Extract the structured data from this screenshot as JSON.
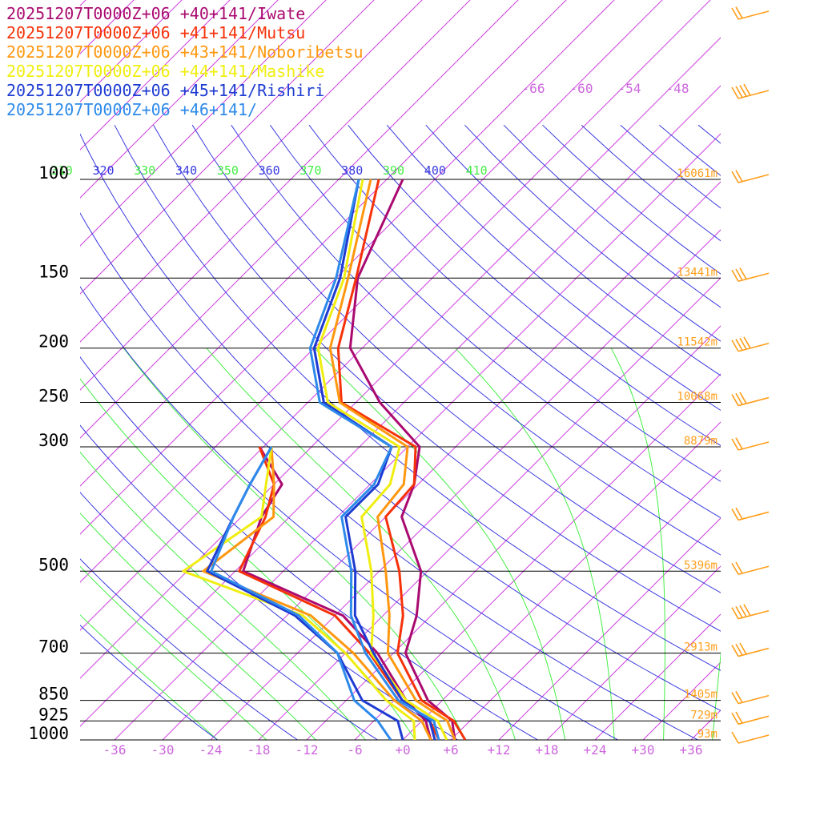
{
  "chart_data": {
    "type": "skew-t log-p sounding",
    "legend": [
      {
        "label": "20251207T0000Z+06 +40+141/Iwate",
        "color": "#aa0a70"
      },
      {
        "label": "20251207T0000Z+06 +41+141/Mutsu",
        "color": "#f5320a"
      },
      {
        "label": "20251207T0000Z+06 +43+141/Noboribetsu",
        "color": "#ff9810"
      },
      {
        "label": "20251207T0000Z+06 +44+141/Mashike",
        "color": "#f0ee10"
      },
      {
        "label": "20251207T0000Z+06 +45+141/Rishiri",
        "color": "#1e3cd2"
      },
      {
        "label": "20251207T0000Z+06 +46+141/",
        "color": "#2e8aea"
      }
    ],
    "pressure_levels": [
      {
        "p": 100,
        "label": "100",
        "height": "16061m"
      },
      {
        "p": 150,
        "label": "150",
        "height": "13441m"
      },
      {
        "p": 200,
        "label": "200",
        "height": "11542m"
      },
      {
        "p": 250,
        "label": "250",
        "height": "10068m"
      },
      {
        "p": 300,
        "label": "300",
        "height": "8879m"
      },
      {
        "p": 500,
        "label": "500",
        "height": "5396m"
      },
      {
        "p": 700,
        "label": "700",
        "height": "2913m"
      },
      {
        "p": 850,
        "label": "850",
        "height": "1405m"
      },
      {
        "p": 925,
        "label": "925",
        "height": "729m"
      },
      {
        "p": 1000,
        "label": "1000",
        "height": "93m"
      }
    ],
    "temperature_ticks": [
      "-36",
      "-30",
      "-24",
      "-18",
      "-12",
      "-6",
      "+0",
      "+6",
      "+12",
      "+18",
      "+24",
      "+30",
      "+36"
    ],
    "upper_temperature_labels": [
      "-66",
      "-60",
      "-54",
      "-48"
    ],
    "theta_labels": [
      "310",
      "320",
      "330",
      "340",
      "350",
      "360",
      "370",
      "380",
      "390",
      "400",
      "410"
    ],
    "colors": {
      "isotherm": "#cc44dd",
      "dry_adiabat": "#3a3ae0",
      "moist_adiabat": "#44ee44",
      "isobar": "#000000",
      "wind_barb": "#ff9e1b",
      "height_label": "#ff9e1b",
      "temp_tick": "#cc66dd"
    },
    "series": [
      {
        "name": "20251207T0000Z+06 +40+141/Iwate",
        "color": "#aa0a70",
        "temperature": [
          [
            1000,
            6.5
          ],
          [
            925,
            3.8
          ],
          [
            850,
            -1.8
          ],
          [
            700,
            -10.5
          ],
          [
            600,
            -13.8
          ],
          [
            500,
            -18.8
          ],
          [
            400,
            -28
          ],
          [
            350,
            -30.5
          ],
          [
            300,
            -34.5
          ],
          [
            250,
            -45
          ],
          [
            200,
            -55.5
          ],
          [
            150,
            -63.3
          ],
          [
            100,
            -70
          ]
        ]
      },
      {
        "name": "20251207T0000Z+06 +41+141/Mutsu",
        "color": "#f5320a",
        "temperature": [
          [
            1000,
            7.8
          ],
          [
            925,
            4
          ],
          [
            850,
            -2.6
          ],
          [
            700,
            -11.5
          ],
          [
            600,
            -15.5
          ],
          [
            500,
            -21.5
          ],
          [
            400,
            -30
          ],
          [
            350,
            -30.5
          ],
          [
            300,
            -35
          ],
          [
            250,
            -49.8
          ],
          [
            200,
            -57
          ],
          [
            150,
            -63.5
          ],
          [
            100,
            -73
          ]
        ]
      },
      {
        "name": "20251207T0000Z+06 +43+141/Noboribetsu",
        "color": "#ff9810",
        "temperature": [
          [
            1000,
            6.5
          ],
          [
            925,
            3.2
          ],
          [
            850,
            -3.3
          ],
          [
            700,
            -12.7
          ],
          [
            600,
            -17.2
          ],
          [
            500,
            -23.2
          ],
          [
            400,
            -31
          ],
          [
            350,
            -31.8
          ],
          [
            300,
            -36
          ],
          [
            250,
            -50
          ],
          [
            200,
            -58
          ],
          [
            150,
            -64.5
          ],
          [
            100,
            -74
          ]
        ]
      },
      {
        "name": "20251207T0000Z+06 +44+141/Mashike",
        "color": "#f0ee10",
        "temperature": [
          [
            1000,
            5.5
          ],
          [
            925,
            2
          ],
          [
            850,
            -4.5
          ],
          [
            700,
            -14.8
          ],
          [
            600,
            -19.2
          ],
          [
            500,
            -25
          ],
          [
            400,
            -33
          ],
          [
            350,
            -33.5
          ],
          [
            300,
            -37
          ],
          [
            250,
            -51.5
          ],
          [
            200,
            -59.5
          ],
          [
            150,
            -65
          ],
          [
            100,
            -75
          ]
        ]
      },
      {
        "name": "20251207T0000Z+06 +45+141/Rishiri",
        "color": "#1e3cd2",
        "temperature": [
          [
            1000,
            4
          ],
          [
            925,
            1
          ],
          [
            850,
            -5
          ],
          [
            700,
            -14.5
          ],
          [
            600,
            -21.5
          ],
          [
            500,
            -27
          ],
          [
            400,
            -35
          ],
          [
            350,
            -35
          ],
          [
            300,
            -38
          ],
          [
            250,
            -52
          ],
          [
            200,
            -60
          ],
          [
            150,
            -65.5
          ],
          [
            100,
            -75.5
          ]
        ]
      },
      {
        "name": "20251207T0000Z+06 +46+141/",
        "color": "#2e8aea",
        "temperature": [
          [
            1000,
            4.5
          ],
          [
            925,
            1.5
          ],
          [
            850,
            -5.5
          ],
          [
            700,
            -15.5
          ],
          [
            600,
            -22
          ],
          [
            500,
            -27.5
          ],
          [
            400,
            -35.5
          ],
          [
            350,
            -35.5
          ],
          [
            300,
            -38
          ],
          [
            250,
            -52.5
          ],
          [
            200,
            -60.5
          ],
          [
            150,
            -66
          ],
          [
            100,
            -75.5
          ]
        ]
      }
    ],
    "dewpoint_series": [
      {
        "name": "20251207T0000Z+06 +40+141/Iwate",
        "color": "#aa0a70",
        "points": [
          [
            1000,
            3.5
          ],
          [
            925,
            0.5
          ],
          [
            850,
            -4.5
          ],
          [
            700,
            -14
          ],
          [
            600,
            -23
          ],
          [
            500,
            -41
          ],
          [
            400,
            -45.5
          ],
          [
            350,
            -47
          ],
          [
            300,
            -54.5
          ]
        ]
      },
      {
        "name": "20251207T0000Z+06 +41+141/Mutsu",
        "color": "#f5320a",
        "points": [
          [
            1000,
            4.5
          ],
          [
            925,
            1
          ],
          [
            850,
            -5
          ],
          [
            700,
            -15
          ],
          [
            600,
            -24
          ],
          [
            500,
            -41.5
          ],
          [
            400,
            -45
          ],
          [
            350,
            -48
          ],
          [
            300,
            -54.5
          ]
        ]
      },
      {
        "name": "20251207T0000Z+06 +43+141/Noboribetsu",
        "color": "#ff9810",
        "points": [
          [
            1000,
            3.5
          ],
          [
            925,
            0
          ],
          [
            850,
            -6
          ],
          [
            700,
            -17
          ],
          [
            600,
            -27
          ],
          [
            500,
            -46
          ],
          [
            400,
            -44
          ],
          [
            350,
            -48
          ],
          [
            300,
            -53
          ]
        ]
      },
      {
        "name": "20251207T0000Z+06 +44+141/Mashike",
        "color": "#f0ee10",
        "points": [
          [
            1000,
            1.5
          ],
          [
            925,
            -1
          ],
          [
            850,
            -7
          ],
          [
            700,
            -18
          ],
          [
            600,
            -28
          ],
          [
            500,
            -48.5
          ],
          [
            400,
            -45.5
          ],
          [
            350,
            -49
          ],
          [
            300,
            -53
          ]
        ]
      },
      {
        "name": "20251207T0000Z+06 +45+141/Rishiri",
        "color": "#1e3cd2",
        "points": [
          [
            1000,
            0
          ],
          [
            925,
            -3
          ],
          [
            850,
            -10
          ],
          [
            700,
            -19
          ],
          [
            600,
            -29
          ],
          [
            500,
            -45.5
          ],
          [
            400,
            -49
          ],
          [
            350,
            -51
          ],
          [
            300,
            -53
          ]
        ]
      },
      {
        "name": "20251207T0000Z+06 +46+141/",
        "color": "#2e8aea",
        "points": [
          [
            1000,
            -1.5
          ],
          [
            925,
            -5.5
          ],
          [
            850,
            -11
          ],
          [
            700,
            -19
          ],
          [
            600,
            -28.5
          ],
          [
            500,
            -45
          ],
          [
            400,
            -49
          ],
          [
            350,
            -51
          ],
          [
            300,
            -53
          ]
        ]
      }
    ],
    "wind_barbs": [
      {
        "p": 1000,
        "barbs": 1
      },
      {
        "p": 925,
        "barbs": 2
      },
      {
        "p": 850,
        "barbs": 2
      },
      {
        "p": 700,
        "barbs": 3
      },
      {
        "p": 600,
        "barbs": 4
      },
      {
        "p": 500,
        "barbs": 2
      },
      {
        "p": 400,
        "barbs": 2
      },
      {
        "p": 300,
        "barbs": 2
      },
      {
        "p": 250,
        "barbs": 3
      },
      {
        "p": 200,
        "barbs": 4
      },
      {
        "p": 150,
        "barbs": 3
      },
      {
        "p": 100,
        "barbs": 2
      },
      {
        "p": 70,
        "barbs": 4
      },
      {
        "p": 50,
        "barbs": 2
      }
    ]
  }
}
